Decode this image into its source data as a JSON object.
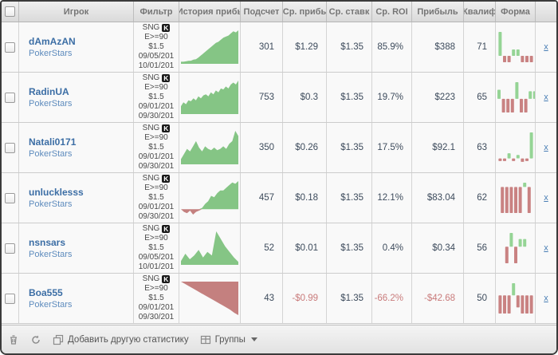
{
  "columns": [
    {
      "label": "Игрок"
    },
    {
      "label": "Фильтр"
    },
    {
      "label": "История прибь"
    },
    {
      "label": "Подсчет"
    },
    {
      "label": "Ср. прибь"
    },
    {
      "label": "Ср. ставк"
    },
    {
      "label": "Ср. ROI"
    },
    {
      "label": "Прибыль"
    },
    {
      "label": "Квалиф"
    },
    {
      "label": "Форма"
    }
  ],
  "colors": {
    "chart_positive": "#85c585",
    "chart_negative": "#c4807f",
    "form_positive": "#95d495",
    "form_negative": "#c98282",
    "player_link": "#3c6ea5",
    "negative_text": "#c97b7b"
  },
  "rows": [
    {
      "player": "dAmAzAN",
      "site": "PokerStars",
      "filter": {
        "game": "SNG",
        "badge": "K",
        "limit": "E>=90",
        "stake": "$1.5",
        "date_from": "09/05/201",
        "date_to": "10/01/201"
      },
      "count": "301",
      "avg_profit": "$1.29",
      "avg_stake": "$1.35",
      "avg_roi": "85.9%",
      "profit": "$388",
      "qualified": "71",
      "remove_label": "x",
      "history": [
        1,
        1,
        1.2,
        1.4,
        1.5,
        2,
        2.2,
        3,
        4,
        5,
        6,
        7,
        8,
        9,
        10,
        10.5,
        11.5,
        12.5,
        13,
        13.5,
        14.5,
        15.5,
        15,
        16
      ],
      "form": [
        3,
        -0.8,
        -0.8,
        0.8,
        0.8,
        -0.8,
        -0.8,
        -0.8
      ]
    },
    {
      "player": "RadinUA",
      "site": "PokerStars",
      "filter": {
        "game": "SNG",
        "badge": "K",
        "limit": "E>=90",
        "stake": "$1.5",
        "date_from": "09/01/201",
        "date_to": "09/30/201"
      },
      "count": "753",
      "avg_profit": "$0.3",
      "avg_stake": "$1.35",
      "avg_roi": "19.7%",
      "profit": "$223",
      "qualified": "65",
      "remove_label": "x",
      "history": [
        4,
        6,
        5,
        7,
        6.5,
        8,
        7,
        9,
        8,
        9.5,
        10,
        9,
        11,
        10,
        12,
        11,
        13,
        12.5,
        14,
        13,
        15,
        16,
        15,
        17
      ],
      "form": [
        1.2,
        -1.8,
        -1.8,
        -1.8,
        2.2,
        -1.8,
        -1.8,
        1,
        1
      ]
    },
    {
      "player": "Natali0171",
      "site": "PokerStars",
      "filter": {
        "game": "SNG",
        "badge": "K",
        "limit": "E>=90",
        "stake": "$1.5",
        "date_from": "09/01/201",
        "date_to": "09/30/201"
      },
      "count": "350",
      "avg_profit": "$0.26",
      "avg_stake": "$1.35",
      "avg_roi": "17.5%",
      "profit": "$92.1",
      "qualified": "63",
      "remove_label": "x",
      "history": [
        2,
        4,
        6,
        5,
        7,
        9,
        6.5,
        5,
        7,
        6,
        5.5,
        6.5,
        5.5,
        6,
        7,
        6,
        8,
        9,
        13,
        11
      ],
      "form": [
        -0.3,
        -0.3,
        0.6,
        -0.3,
        0.4,
        -0.4,
        -0.3,
        3
      ]
    },
    {
      "player": "unlucklesss",
      "site": "PokerStars",
      "filter": {
        "game": "SNG",
        "badge": "K",
        "limit": "E>=90",
        "stake": "$1.5",
        "date_from": "09/01/201",
        "date_to": "09/30/201"
      },
      "count": "457",
      "avg_profit": "$0.18",
      "avg_stake": "$1.35",
      "avg_roi": "12.1%",
      "profit": "$83.04",
      "qualified": "62",
      "remove_label": "x",
      "history": [
        0,
        -1,
        -1.5,
        -0.5,
        -2,
        -1,
        -0.5,
        0.5,
        2,
        3,
        5,
        4.5,
        6,
        7,
        7,
        8,
        9,
        10,
        9.5,
        10.5
      ],
      "form": [
        -3,
        -3,
        -3,
        -3,
        -3,
        0.5,
        -3
      ]
    },
    {
      "player": "nsnsars",
      "site": "PokerStars",
      "filter": {
        "game": "SNG",
        "badge": "K",
        "limit": "E>=90",
        "stake": "$1.5",
        "date_from": "09/05/201",
        "date_to": "10/01/201"
      },
      "count": "52",
      "avg_profit": "$0.01",
      "avg_stake": "$1.35",
      "avg_roi": "0.4%",
      "profit": "$0.34",
      "qualified": "56",
      "remove_label": "x",
      "history": [
        1,
        3,
        1.5,
        2.5,
        4,
        2,
        3.5,
        2.5,
        9,
        7,
        5,
        3.5,
        2,
        0.8
      ],
      "form": [
        -3,
        2.5,
        -3,
        1.4,
        1.4
      ]
    },
    {
      "player": "Boa555",
      "site": "PokerStars",
      "filter": {
        "game": "SNG",
        "badge": "K",
        "limit": "E>=90",
        "stake": "$1.5",
        "date_from": "09/01/201",
        "date_to": "09/30/201"
      },
      "count": "43",
      "avg_profit": "-$0.99",
      "avg_stake": "$1.35",
      "avg_roi": "-66.2%",
      "profit": "-$42.68",
      "qualified": "50",
      "remove_label": "x",
      "history": [
        0,
        -3,
        -6,
        -9,
        -12,
        -15,
        -18,
        -21,
        -24,
        -27,
        -30,
        -33,
        -36,
        -40,
        -43
      ],
      "form": [
        -3,
        -3,
        -3,
        2,
        -2,
        -3,
        -3,
        -3
      ]
    }
  ],
  "footer": {
    "add_label": "Добавить другую статистику",
    "groups_label": "Группы"
  }
}
